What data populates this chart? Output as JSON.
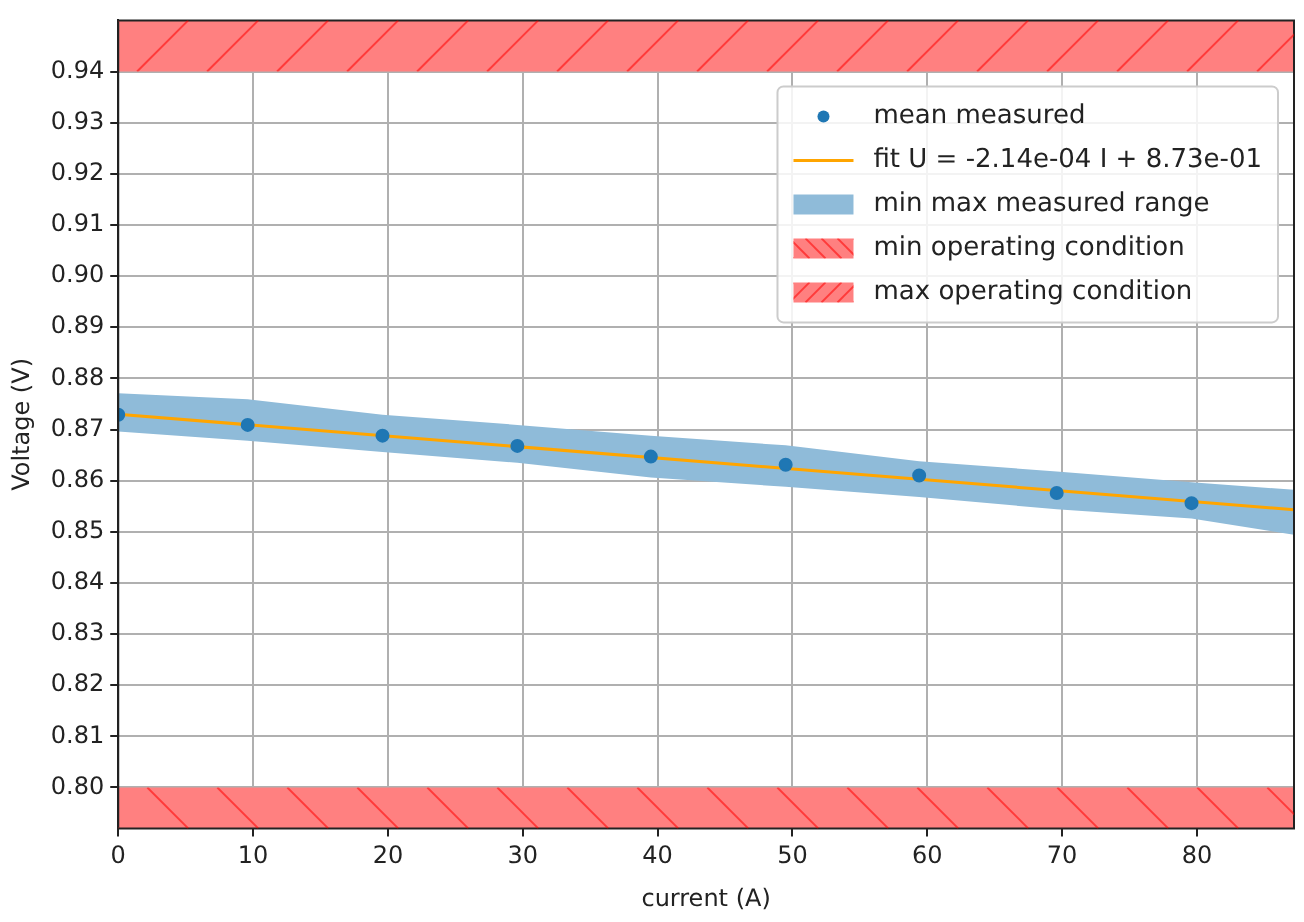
{
  "chart_data": {
    "type": "scatter",
    "xlabel": "current (A)",
    "ylabel": "Voltage (V)",
    "xlim": [
      0,
      87.2
    ],
    "xticks": [
      0,
      10,
      20,
      30,
      40,
      50,
      60,
      70,
      80
    ],
    "ylim": [
      0.792,
      0.95
    ],
    "yticks": [
      {
        "value": 0.8,
        "label": "0.80"
      },
      0.81,
      0.82,
      0.83,
      0.84,
      0.85,
      0.86,
      0.87,
      0.88,
      0.89,
      {
        "value": 0.9,
        "label": "0.90"
      },
      0.91,
      0.92,
      0.93,
      0.94
    ],
    "grid": true,
    "legend": "top right",
    "marker": "circle",
    "series": [
      {
        "name": "mean measured",
        "color": "#1f77b4",
        "x": [
          0,
          9.6,
          19.6,
          29.6,
          39.5,
          49.5,
          59.4,
          69.6,
          79.6
        ],
        "values": [
          0.8729,
          0.8709,
          0.8688,
          0.8668,
          0.8647,
          0.8631,
          0.861,
          0.8576,
          0.8556
        ]
      },
      {
        "type": "line",
        "name": "fit U = -2.14e-04 I + 8.73e-01",
        "color": "#ffa500",
        "marker": "none",
        "x": [
          0,
          87.2
        ],
        "values": [
          0.873,
          0.8543
        ]
      },
      {
        "type": "area",
        "name": "min max measured range",
        "color": "#8fbbd9",
        "x": [
          0,
          9.6,
          19.6,
          29.6,
          39.5,
          49.5,
          59.4,
          69.6,
          79.6,
          87.2
        ],
        "values": [
          null,
          null,
          null,
          null,
          null,
          null,
          null,
          null,
          null,
          null
        ],
        "lower": [
          0.8696,
          0.8678,
          0.8656,
          0.8635,
          0.8606,
          0.8588,
          0.8568,
          0.8544,
          0.8526,
          0.8494
        ],
        "upper": [
          0.8771,
          0.8759,
          0.8729,
          0.8709,
          0.8688,
          0.8669,
          0.8638,
          0.8618,
          0.8597,
          0.8582
        ]
      }
    ],
    "bands": [
      {
        "axis": "y",
        "from": 0.792,
        "to": 0.8,
        "label": "min operating condition",
        "color": "#ff8080"
      },
      {
        "axis": "y",
        "from": 0.94,
        "to": 0.95,
        "label": "max operating condition",
        "color": "#ff8080"
      }
    ]
  }
}
